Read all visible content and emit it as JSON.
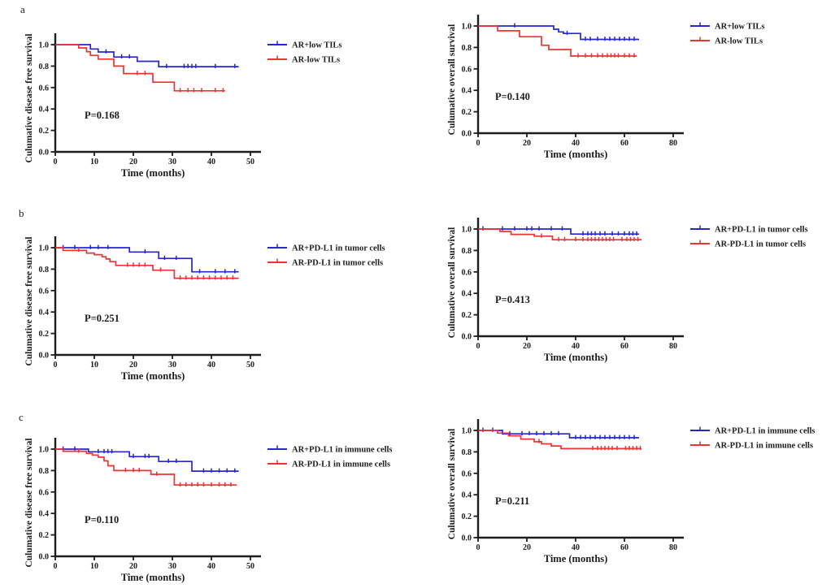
{
  "figure": {
    "rows": [
      {
        "letter": "a"
      },
      {
        "letter": "b"
      },
      {
        "letter": "c"
      }
    ]
  },
  "palette": {
    "curve_blue": "#2626d2",
    "curve_red": "#ee3333",
    "ink": "#1c1c1c"
  },
  "chart_data": [
    {
      "type": "line",
      "panel": "a-left",
      "subtype": "kaplan-meier-step",
      "xlabel": "Time (months)",
      "ylabel": "Culumative disease free survival",
      "p_label": "P=0.168",
      "xlim": [
        0,
        50
      ],
      "xticks": [
        0,
        10,
        20,
        30,
        40,
        50
      ],
      "yticks": [
        0.0,
        0.2,
        0.4,
        0.6,
        0.8,
        1.0
      ],
      "legend_position": "right-top",
      "grid": false,
      "series": [
        {
          "name": "AR+low TILs",
          "color": "#2626d2",
          "steps": [
            [
              0,
              1
            ],
            [
              9,
              1
            ],
            [
              9,
              0.96
            ],
            [
              11,
              0.96
            ],
            [
              11,
              0.932
            ],
            [
              15,
              0.932
            ],
            [
              15,
              0.885
            ],
            [
              21,
              0.885
            ],
            [
              21,
              0.845
            ],
            [
              26.5,
              0.845
            ],
            [
              26.5,
              0.795
            ],
            [
              47,
              0.795
            ]
          ],
          "censor_x": [
            13,
            17,
            19,
            28.5,
            33,
            34,
            35,
            36,
            41,
            46
          ]
        },
        {
          "name": "AR-low TILs",
          "color": "#ee3333",
          "steps": [
            [
              0,
              1
            ],
            [
              6,
              1
            ],
            [
              6,
              0.97
            ],
            [
              8,
              0.97
            ],
            [
              8,
              0.935
            ],
            [
              9,
              0.935
            ],
            [
              9,
              0.9
            ],
            [
              11,
              0.9
            ],
            [
              11,
              0.865
            ],
            [
              15,
              0.865
            ],
            [
              15,
              0.8
            ],
            [
              17.5,
              0.8
            ],
            [
              17.5,
              0.73
            ],
            [
              25,
              0.73
            ],
            [
              25,
              0.65
            ],
            [
              30.5,
              0.65
            ],
            [
              30.5,
              0.57
            ],
            [
              43.5,
              0.57
            ]
          ],
          "censor_x": [
            21,
            23,
            32,
            34,
            35.5,
            37.5,
            41,
            43
          ]
        }
      ]
    },
    {
      "type": "line",
      "panel": "a-right",
      "subtype": "kaplan-meier-step",
      "xlabel": "Time (months)",
      "ylabel": "Culumative overall survival",
      "p_label": "P=0.140",
      "xlim": [
        0,
        80
      ],
      "xticks": [
        0,
        20,
        40,
        60,
        80
      ],
      "yticks": [
        0.0,
        0.2,
        0.4,
        0.6,
        0.8,
        1.0
      ],
      "legend_position": "right-top",
      "grid": false,
      "series": [
        {
          "name": "AR+low TILs",
          "color": "#2626d2",
          "steps": [
            [
              0,
              1
            ],
            [
              31,
              1
            ],
            [
              31,
              0.97
            ],
            [
              33,
              0.97
            ],
            [
              33,
              0.945
            ],
            [
              35,
              0.945
            ],
            [
              35,
              0.93
            ],
            [
              42,
              0.93
            ],
            [
              42,
              0.875
            ],
            [
              66,
              0.875
            ]
          ],
          "censor_x": [
            15,
            36.5,
            44,
            46,
            49,
            52,
            54,
            56,
            58,
            60,
            62,
            64
          ]
        },
        {
          "name": "AR-low TILs",
          "color": "#ee3333",
          "steps": [
            [
              0,
              1
            ],
            [
              8,
              1
            ],
            [
              8,
              0.955
            ],
            [
              17,
              0.955
            ],
            [
              17,
              0.9
            ],
            [
              26,
              0.9
            ],
            [
              26,
              0.82
            ],
            [
              29,
              0.82
            ],
            [
              29,
              0.78
            ],
            [
              38,
              0.78
            ],
            [
              38,
              0.72
            ],
            [
              65,
              0.72
            ]
          ],
          "censor_x": [
            41,
            44,
            46.5,
            49,
            51,
            53,
            54.5,
            56,
            57.5,
            60,
            62,
            64
          ]
        }
      ]
    },
    {
      "type": "line",
      "panel": "b-left",
      "subtype": "kaplan-meier-step",
      "xlabel": "Time (months)",
      "ylabel": "Culumative disease free survival",
      "p_label": "P=0.251",
      "xlim": [
        0,
        50
      ],
      "xticks": [
        0,
        10,
        20,
        30,
        40,
        50
      ],
      "yticks": [
        0.0,
        0.2,
        0.4,
        0.6,
        0.8,
        1.0
      ],
      "legend_position": "right-top",
      "grid": false,
      "series": [
        {
          "name": "AR+PD-L1 in tumor cells",
          "color": "#2626d2",
          "steps": [
            [
              0,
              1
            ],
            [
              19,
              1
            ],
            [
              19,
              0.96
            ],
            [
              26.5,
              0.96
            ],
            [
              26.5,
              0.9
            ],
            [
              35,
              0.9
            ],
            [
              35,
              0.775
            ],
            [
              47,
              0.775
            ]
          ],
          "censor_x": [
            2,
            5,
            9,
            11,
            13.5,
            23,
            28,
            31,
            37,
            41,
            43.5,
            46
          ]
        },
        {
          "name": "AR-PD-L1 in tumor cells",
          "color": "#ee3333",
          "steps": [
            [
              0,
              1
            ],
            [
              2,
              1
            ],
            [
              2,
              0.975
            ],
            [
              8,
              0.975
            ],
            [
              8,
              0.95
            ],
            [
              10,
              0.95
            ],
            [
              10,
              0.935
            ],
            [
              12,
              0.935
            ],
            [
              12,
              0.915
            ],
            [
              13,
              0.915
            ],
            [
              13,
              0.895
            ],
            [
              14,
              0.895
            ],
            [
              14,
              0.87
            ],
            [
              15.5,
              0.87
            ],
            [
              15.5,
              0.835
            ],
            [
              25,
              0.835
            ],
            [
              25,
              0.79
            ],
            [
              30.5,
              0.79
            ],
            [
              30.5,
              0.715
            ],
            [
              47,
              0.715
            ]
          ],
          "censor_x": [
            6,
            18.5,
            20,
            21.5,
            23,
            27,
            32,
            33.5,
            35,
            36.5,
            38,
            39.5,
            41,
            42.5,
            44,
            45.5
          ]
        }
      ]
    },
    {
      "type": "line",
      "panel": "b-right",
      "subtype": "kaplan-meier-step",
      "xlabel": "Time (months)",
      "ylabel": "Culumative overall survival",
      "p_label": "P=0.413",
      "xlim": [
        0,
        80
      ],
      "xticks": [
        0,
        20,
        40,
        60,
        80
      ],
      "yticks": [
        0.0,
        0.2,
        0.4,
        0.6,
        0.8,
        1.0
      ],
      "legend_position": "right-top",
      "grid": false,
      "series": [
        {
          "name": "AR+PD-L1 in tumor cells",
          "color": "#2626d2",
          "steps": [
            [
              0,
              1
            ],
            [
              38,
              1
            ],
            [
              38,
              0.953
            ],
            [
              66,
              0.953
            ]
          ],
          "censor_x": [
            2,
            10,
            15,
            20,
            22,
            25,
            30,
            34.5,
            43,
            45,
            46.5,
            48,
            50,
            52,
            55,
            57.5,
            60,
            62,
            63.5,
            65
          ]
        },
        {
          "name": "AR-PD-L1 in tumor cells",
          "color": "#ee3333",
          "steps": [
            [
              0,
              1
            ],
            [
              9,
              1
            ],
            [
              9,
              0.977
            ],
            [
              13.5,
              0.977
            ],
            [
              13.5,
              0.95
            ],
            [
              23,
              0.95
            ],
            [
              23,
              0.933
            ],
            [
              30.5,
              0.933
            ],
            [
              30.5,
              0.9
            ],
            [
              67,
              0.9
            ]
          ],
          "censor_x": [
            26,
            33,
            35.5,
            40,
            43,
            45,
            46.5,
            48,
            49.5,
            51,
            52.5,
            54,
            55.5,
            59,
            61,
            62.5,
            64,
            65.5
          ]
        }
      ]
    },
    {
      "type": "line",
      "panel": "c-left",
      "subtype": "kaplan-meier-step",
      "xlabel": "Time (months)",
      "ylabel": "Culumative disease free survival",
      "p_label": "P=0.110",
      "xlim": [
        0,
        50
      ],
      "xticks": [
        0,
        10,
        20,
        30,
        40,
        50
      ],
      "yticks": [
        0.0,
        0.2,
        0.4,
        0.6,
        0.8,
        1.0
      ],
      "legend_position": "right-top",
      "grid": false,
      "series": [
        {
          "name": "AR+PD-L1 in immune cells",
          "color": "#2626d2",
          "steps": [
            [
              0,
              1
            ],
            [
              8.5,
              1
            ],
            [
              8.5,
              0.975
            ],
            [
              19,
              0.975
            ],
            [
              19,
              0.93
            ],
            [
              26.5,
              0.93
            ],
            [
              26.5,
              0.885
            ],
            [
              35,
              0.885
            ],
            [
              35,
              0.795
            ],
            [
              47,
              0.795
            ]
          ],
          "censor_x": [
            2,
            5,
            11,
            12.5,
            13.5,
            14.5,
            20,
            23,
            24,
            29,
            31,
            38,
            40,
            42,
            44,
            46
          ]
        },
        {
          "name": "AR-PD-L1 in immune cells",
          "color": "#ee3333",
          "steps": [
            [
              0,
              1
            ],
            [
              2,
              1
            ],
            [
              2,
              0.98
            ],
            [
              8,
              0.98
            ],
            [
              8,
              0.96
            ],
            [
              9.5,
              0.96
            ],
            [
              9.5,
              0.945
            ],
            [
              11,
              0.945
            ],
            [
              11,
              0.925
            ],
            [
              12.5,
              0.925
            ],
            [
              12.5,
              0.89
            ],
            [
              13.5,
              0.89
            ],
            [
              13.5,
              0.845
            ],
            [
              15,
              0.845
            ],
            [
              15,
              0.8
            ],
            [
              24.5,
              0.8
            ],
            [
              24.5,
              0.765
            ],
            [
              30.5,
              0.765
            ],
            [
              30.5,
              0.665
            ],
            [
              46.5,
              0.665
            ]
          ],
          "censor_x": [
            6,
            18,
            20,
            21.5,
            26,
            32,
            33.5,
            35,
            36.5,
            38,
            40,
            42,
            43.5,
            45
          ]
        }
      ]
    },
    {
      "type": "line",
      "panel": "c-right",
      "subtype": "kaplan-meier-step",
      "xlabel": "Time (months)",
      "ylabel": "Culumative overall survival",
      "p_label": "P=0.211",
      "xlim": [
        0,
        80
      ],
      "xticks": [
        0,
        20,
        40,
        60,
        80
      ],
      "yticks": [
        0.0,
        0.2,
        0.4,
        0.6,
        0.8,
        1.0
      ],
      "legend_position": "right-top",
      "grid": false,
      "series": [
        {
          "name": "AR+PD-L1 in immune cells",
          "color": "#2626d2",
          "steps": [
            [
              0,
              1
            ],
            [
              10,
              1
            ],
            [
              10,
              0.968
            ],
            [
              37.5,
              0.968
            ],
            [
              37.5,
              0.932
            ],
            [
              66,
              0.932
            ]
          ],
          "censor_x": [
            2,
            6,
            13,
            18,
            21,
            24,
            27,
            30,
            33,
            40,
            42,
            44,
            46,
            48,
            50,
            52,
            54,
            56,
            58,
            60,
            62,
            64
          ]
        },
        {
          "name": "AR-PD-L1 in immune cells",
          "color": "#ee3333",
          "steps": [
            [
              0,
              1
            ],
            [
              8,
              1
            ],
            [
              8,
              0.975
            ],
            [
              12.5,
              0.975
            ],
            [
              12.5,
              0.95
            ],
            [
              17.5,
              0.95
            ],
            [
              17.5,
              0.92
            ],
            [
              23,
              0.92
            ],
            [
              23,
              0.895
            ],
            [
              26,
              0.895
            ],
            [
              26,
              0.875
            ],
            [
              30,
              0.875
            ],
            [
              30,
              0.855
            ],
            [
              34,
              0.855
            ],
            [
              34,
              0.83
            ],
            [
              67,
              0.83
            ]
          ],
          "censor_x": [
            25,
            47,
            49,
            50.5,
            52,
            53.5,
            55,
            57,
            60.5,
            62,
            63.5,
            65,
            66.5
          ]
        }
      ]
    }
  ]
}
